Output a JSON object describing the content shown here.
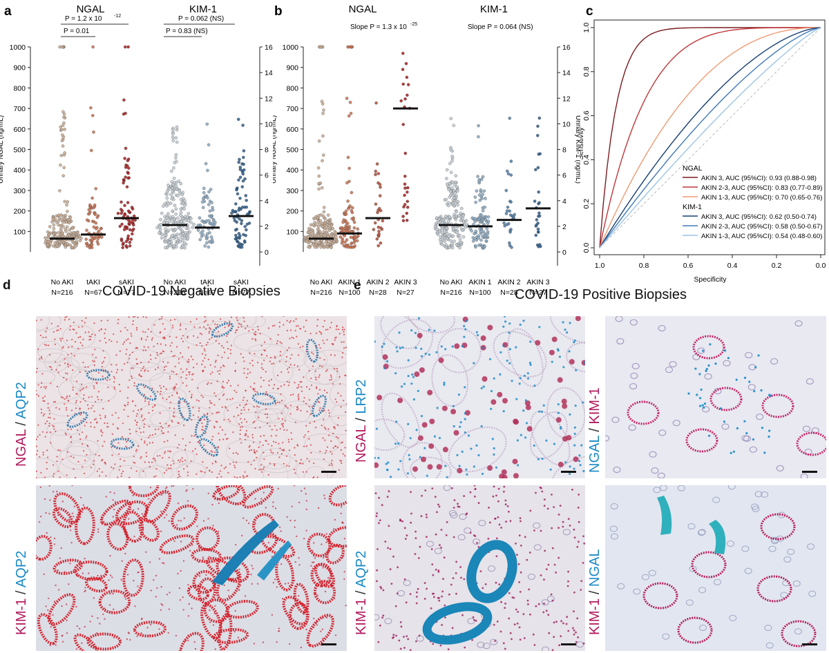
{
  "chart_data": [
    {
      "panel": "a",
      "type": "scatter",
      "left_title": "NGAL",
      "right_title": "KIM-1",
      "ylabel_left": "Urinary NGAL (ng/mL)",
      "ylabel_right": "Urinary KIM-1 (ng/mL)",
      "ylim_left": [
        0,
        1000
      ],
      "yticks_left": [
        100,
        200,
        300,
        400,
        500,
        600,
        700,
        800,
        900,
        1000
      ],
      "ylim_right": [
        0,
        16
      ],
      "yticks_right": [
        0,
        2,
        4,
        6,
        8,
        10,
        12,
        14,
        16
      ],
      "groups": [
        {
          "marker": "NGAL",
          "label": "No AKI",
          "n": "N=216",
          "median": 65,
          "color": "#c8ab94",
          "count": 216
        },
        {
          "marker": "NGAL",
          "label": "tAKI",
          "n": "N=67",
          "median": 85,
          "color": "#c7704d",
          "count": 67
        },
        {
          "marker": "NGAL",
          "label": "sAKI",
          "n": "N=77",
          "median": 165,
          "color": "#a61c1c",
          "count": 77
        },
        {
          "marker": "KIM-1",
          "label": "No AKI",
          "n": "N=216",
          "median": 2.1,
          "color": "#c3ccd3",
          "count": 216
        },
        {
          "marker": "KIM-1",
          "label": "tAKI",
          "n": "N=67",
          "median": 1.9,
          "color": "#88a7bf",
          "count": 67
        },
        {
          "marker": "KIM-1",
          "label": "sAKI",
          "n": "N=77",
          "median": 2.8,
          "color": "#2b5a88",
          "count": 77
        }
      ],
      "annotations": [
        "P = 1.2 x 10",
        "-12",
        "P = 0.01",
        "P = 0.062 (NS)",
        "P = 0.83 (NS)"
      ]
    },
    {
      "panel": "b",
      "type": "scatter",
      "left_title": "NGAL",
      "right_title": "KIM-1",
      "ylabel_left": "Urinary NGAL (ng/mL)",
      "ylabel_right": "Urinary KIM-1 (ng/mL)",
      "ylim_left": [
        0,
        1000
      ],
      "yticks_left": [
        100,
        200,
        300,
        400,
        500,
        600,
        700,
        800,
        900,
        1000
      ],
      "ylim_right": [
        0,
        16
      ],
      "yticks_right": [
        0,
        2,
        4,
        6,
        8,
        10,
        12,
        14,
        16
      ],
      "groups": [
        {
          "marker": "NGAL",
          "label": "No AKI",
          "n": "N=216",
          "median": 65,
          "color": "#c8ab94",
          "count": 216
        },
        {
          "marker": "NGAL",
          "label": "AKIN 1",
          "n": "N=100",
          "median": 90,
          "color": "#c7704d",
          "count": 100
        },
        {
          "marker": "NGAL",
          "label": "AKIN 2",
          "n": "N=28",
          "median": 165,
          "color": "#b04a34",
          "count": 28
        },
        {
          "marker": "NGAL",
          "label": "AKIN 3",
          "n": "N=27",
          "median": 700,
          "color": "#a61c1c",
          "count": 27
        },
        {
          "marker": "KIM-1",
          "label": "No AKI",
          "n": "N=216",
          "median": 2.1,
          "color": "#c3ccd3",
          "count": 216
        },
        {
          "marker": "KIM-1",
          "label": "AKIN 1",
          "n": "N=100",
          "median": 2.0,
          "color": "#88a7bf",
          "count": 100
        },
        {
          "marker": "KIM-1",
          "label": "AKIN 2",
          "n": "N=28",
          "median": 2.5,
          "color": "#4d7aa3",
          "count": 28
        },
        {
          "marker": "KIM-1",
          "label": "AKIN 3",
          "n": "N=27",
          "median": 3.4,
          "color": "#2b5a88",
          "count": 27
        }
      ],
      "annotations": [
        "Slope P = 1.3 x 10",
        "-25",
        "Slope P = 0.064 (NS)"
      ]
    },
    {
      "panel": "c",
      "type": "line",
      "xlabel": "Specificity",
      "ylabel": "Sensitivity",
      "xlim": [
        1.0,
        0.0
      ],
      "ylim": [
        0.0,
        1.0
      ],
      "xticks": [
        "1.0",
        "0.8",
        "0.6",
        "0.4",
        "0.2",
        "0.0"
      ],
      "yticks": [
        "0.0",
        "0.2",
        "0.4",
        "0.6",
        "0.8",
        "1.0"
      ],
      "legend_headers": [
        "NGAL",
        "KIM-1"
      ],
      "series": [
        {
          "group": "NGAL",
          "name": "AKIN 3, AUC (95%CI): 0.93 (0.88-0.98)",
          "auc": 0.93,
          "color": "#7a1a1f"
        },
        {
          "group": "NGAL",
          "name": "AKIN 2-3, AUC (95%CI): 0.83 (0.77-0.89)",
          "auc": 0.83,
          "color": "#c1363a"
        },
        {
          "group": "NGAL",
          "name": "AKIN 1-3, AUC (95%CI): 0.70 (0.65-0.76)",
          "auc": 0.7,
          "color": "#ef9a72"
        },
        {
          "group": "KIM-1",
          "name": "AKIN 3, AUC (95%CI): 0.62 (0.50-0.74)",
          "auc": 0.62,
          "color": "#153e73"
        },
        {
          "group": "KIM-1",
          "name": "AKIN 2-3, AUC (95%CI): 0.58 (0.50-0.67)",
          "auc": 0.58,
          "color": "#3f78b8"
        },
        {
          "group": "KIM-1",
          "name": "AKIN 1-3, AUC (95%CI): 0.54 (0.48-0.60)",
          "auc": 0.54,
          "color": "#9cc4e6"
        }
      ]
    }
  ],
  "panels": {
    "a": "a",
    "b": "b",
    "c": "c",
    "d": "d",
    "e": "e"
  },
  "images": {
    "neg_title": "COVID-19 Negative Biopsies",
    "pos_title": "COVID-19 Positive Biopsies",
    "stains": [
      {
        "first": "NGAL",
        "sep": " / ",
        "second": "AQP2"
      },
      {
        "first": "KIM-1",
        "sep": " / ",
        "second": "AQP2"
      },
      {
        "first": "NGAL",
        "sep": " / ",
        "second": "LRP2"
      },
      {
        "first": "NGAL",
        "sep": " / ",
        "second": "KIM-1"
      },
      {
        "first": "KIM-1",
        "sep": " / ",
        "second": "AQP2"
      },
      {
        "first": "KIM-1",
        "sep": " / ",
        "second": "NGAL"
      }
    ],
    "colors": {
      "pink": "#b2185c",
      "blue": "#1789c6"
    }
  }
}
